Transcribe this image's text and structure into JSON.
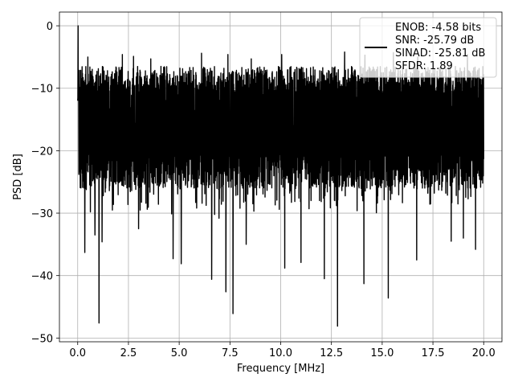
{
  "chart_data": {
    "type": "line",
    "title": "",
    "xlabel": "Frequency [MHz]",
    "ylabel": "PSD [dB]",
    "xlim": [
      -0.9,
      20.9
    ],
    "ylim": [
      -50.6,
      2.2
    ],
    "xticks": [
      0.0,
      2.5,
      5.0,
      7.5,
      10.0,
      12.5,
      15.0,
      17.5,
      20.0
    ],
    "xtick_labels": [
      "0.0",
      "2.5",
      "5.0",
      "7.5",
      "10.0",
      "12.5",
      "15.0",
      "17.5",
      "20.0"
    ],
    "yticks": [
      0,
      -10,
      -20,
      -30,
      -40,
      -50
    ],
    "ytick_labels": [
      "0",
      "−10",
      "−20",
      "−30",
      "−40",
      "−50"
    ],
    "grid": true,
    "legend_position": "top-right",
    "series": [
      {
        "name": "ENOB: -4.58 bits\nSNR: -25.79 dB\nSINAD: -25.81 dB\nSFDR: 1.89",
        "legend_lines": [
          "ENOB: -4.58 bits",
          "SNR: -25.79 dB",
          "SINAD: -25.81 dB",
          "SFDR: 1.89"
        ],
        "color": "#000000",
        "x_range": [
          0.0,
          20.0
        ],
        "baseline_db": -16.5,
        "peak": {
          "x": 0.02,
          "y": 0.0
        },
        "envelope_upper_db": -6.5,
        "envelope_lower_db": -26.0,
        "deep_nulls": [
          {
            "x": 0.35,
            "y": -36.3
          },
          {
            "x": 0.85,
            "y": -33.5
          },
          {
            "x": 1.05,
            "y": -47.6
          },
          {
            "x": 1.2,
            "y": -34.6
          },
          {
            "x": 3.0,
            "y": -32.5
          },
          {
            "x": 4.7,
            "y": -37.3
          },
          {
            "x": 5.1,
            "y": -38.1
          },
          {
            "x": 6.6,
            "y": -40.6
          },
          {
            "x": 7.3,
            "y": -42.6
          },
          {
            "x": 7.65,
            "y": -46.1
          },
          {
            "x": 8.3,
            "y": -35.0
          },
          {
            "x": 10.2,
            "y": -38.8
          },
          {
            "x": 11.0,
            "y": -37.9
          },
          {
            "x": 12.15,
            "y": -40.5
          },
          {
            "x": 12.8,
            "y": -48.1
          },
          {
            "x": 14.1,
            "y": -41.3
          },
          {
            "x": 15.3,
            "y": -43.6
          },
          {
            "x": 16.7,
            "y": -37.5
          },
          {
            "x": 18.4,
            "y": -34.5
          },
          {
            "x": 19.0,
            "y": -34.0
          },
          {
            "x": 19.6,
            "y": -35.8
          }
        ],
        "high_spurs": [
          {
            "x": 0.5,
            "y": -5.0
          },
          {
            "x": 2.2,
            "y": -4.6
          },
          {
            "x": 2.75,
            "y": -4.9
          },
          {
            "x": 3.6,
            "y": -5.3
          },
          {
            "x": 6.1,
            "y": -4.4
          },
          {
            "x": 7.4,
            "y": -4.6
          },
          {
            "x": 8.55,
            "y": -5.3
          },
          {
            "x": 10.05,
            "y": -4.6
          },
          {
            "x": 13.15,
            "y": -4.2
          },
          {
            "x": 14.15,
            "y": -4.7
          },
          {
            "x": 15.55,
            "y": -4.3
          },
          {
            "x": 16.75,
            "y": -5.0
          },
          {
            "x": 19.2,
            "y": -4.6
          }
        ]
      }
    ]
  }
}
